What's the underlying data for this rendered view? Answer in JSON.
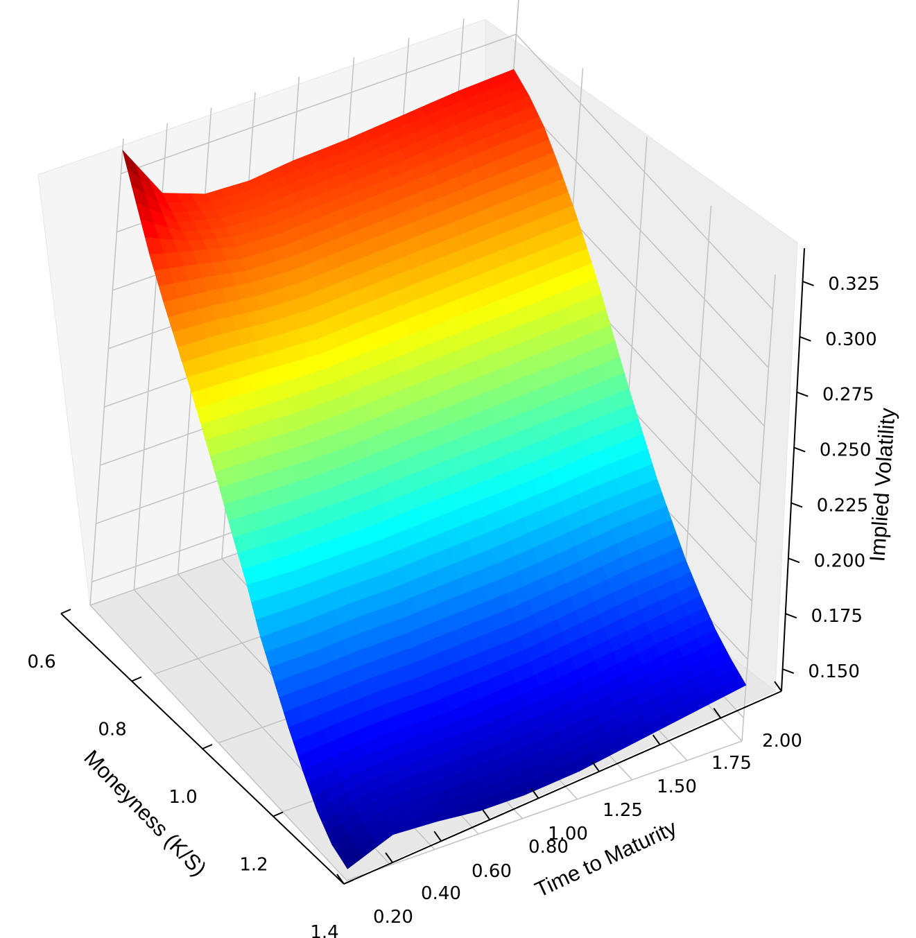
{
  "chart_data": {
    "type": "surface",
    "title": "",
    "xlabel": "Moneyness (K/S)",
    "ylabel": "Time to Maturity",
    "zlabel": "Implied Volatility",
    "xlim": [
      0.6,
      1.4
    ],
    "ylim": [
      0.2,
      2.0
    ],
    "zlim": [
      0.14,
      0.34
    ],
    "xticks": [
      "0.6",
      "0.8",
      "1.0",
      "1.2",
      "1.4"
    ],
    "yticks": [
      "0.20",
      "0.40",
      "0.60",
      "0.80",
      "1.00",
      "1.25",
      "1.50",
      "1.75",
      "2.00"
    ],
    "zticks": [
      "0.150",
      "0.175",
      "0.200",
      "0.225",
      "0.250",
      "0.275",
      "0.300",
      "0.325"
    ],
    "colormap": "jet",
    "grid": true,
    "maturities": [
      0.2,
      0.4,
      0.6,
      0.8,
      1.0,
      1.25,
      1.5,
      1.75,
      2.0
    ],
    "moneyness": [
      0.6,
      0.65,
      0.7,
      0.75,
      0.8,
      0.85,
      0.9,
      0.95,
      1.0,
      1.05,
      1.1,
      1.15,
      1.2,
      1.25,
      1.3,
      1.35,
      1.4
    ],
    "implied_volatility": [
      [
        0.335,
        0.32,
        0.305,
        0.292,
        0.28,
        0.268,
        0.255,
        0.242,
        0.228,
        0.215,
        0.2,
        0.188,
        0.176,
        0.165,
        0.155,
        0.148,
        0.145
      ],
      [
        0.31,
        0.305,
        0.3,
        0.29,
        0.279,
        0.267,
        0.254,
        0.241,
        0.227,
        0.214,
        0.2,
        0.188,
        0.177,
        0.167,
        0.16,
        0.155,
        0.153
      ],
      [
        0.303,
        0.3,
        0.295,
        0.287,
        0.277,
        0.266,
        0.253,
        0.24,
        0.227,
        0.214,
        0.201,
        0.189,
        0.178,
        0.168,
        0.161,
        0.155,
        0.152
      ],
      [
        0.302,
        0.299,
        0.294,
        0.286,
        0.276,
        0.265,
        0.253,
        0.24,
        0.227,
        0.214,
        0.201,
        0.189,
        0.178,
        0.168,
        0.161,
        0.154,
        0.15
      ],
      [
        0.304,
        0.3,
        0.295,
        0.287,
        0.277,
        0.266,
        0.254,
        0.241,
        0.228,
        0.215,
        0.202,
        0.19,
        0.179,
        0.169,
        0.161,
        0.155,
        0.15
      ],
      [
        0.305,
        0.301,
        0.296,
        0.288,
        0.278,
        0.267,
        0.255,
        0.242,
        0.229,
        0.216,
        0.203,
        0.191,
        0.18,
        0.171,
        0.163,
        0.157,
        0.152
      ],
      [
        0.307,
        0.303,
        0.297,
        0.289,
        0.279,
        0.268,
        0.256,
        0.243,
        0.23,
        0.217,
        0.205,
        0.193,
        0.183,
        0.174,
        0.166,
        0.16,
        0.156
      ],
      [
        0.309,
        0.305,
        0.299,
        0.29,
        0.28,
        0.269,
        0.257,
        0.244,
        0.231,
        0.219,
        0.207,
        0.196,
        0.186,
        0.177,
        0.17,
        0.164,
        0.16
      ],
      [
        0.31,
        0.306,
        0.3,
        0.291,
        0.281,
        0.27,
        0.258,
        0.245,
        0.232,
        0.22,
        0.208,
        0.198,
        0.188,
        0.18,
        0.173,
        0.168,
        0.164
      ]
    ]
  }
}
